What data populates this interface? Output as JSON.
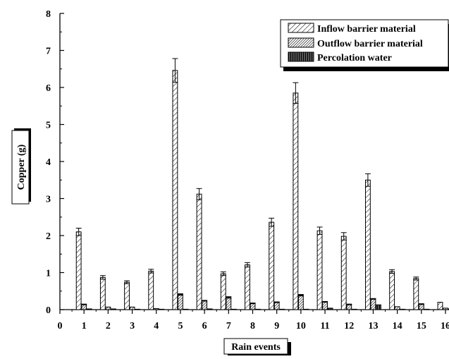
{
  "chart_data": {
    "type": "bar",
    "xlabel": "Rain events",
    "ylabel": "Copper (g)",
    "ylim": [
      0,
      8
    ],
    "xlim": [
      0,
      16
    ],
    "x_ticks": [
      "0",
      "1",
      "2",
      "3",
      "4",
      "5",
      "6",
      "7",
      "8",
      "9",
      "10",
      "11",
      "12",
      "13",
      "14",
      "15",
      "16"
    ],
    "y_ticks": [
      "0",
      "1",
      "2",
      "3",
      "4",
      "5",
      "6",
      "7",
      "8"
    ],
    "categories": [
      "1",
      "2",
      "3",
      "4",
      "5",
      "6",
      "7",
      "8",
      "9",
      "10",
      "11",
      "12",
      "13",
      "14",
      "15",
      "16"
    ],
    "legend_position": "top-right",
    "series": [
      {
        "name": "Inflow barrier material",
        "pattern": "sparse-diagonal-hatch",
        "values": [
          2.1,
          0.87,
          0.74,
          1.04,
          6.46,
          3.12,
          0.97,
          1.21,
          2.36,
          5.85,
          2.13,
          1.98,
          3.5,
          1.03,
          0.84,
          0.2
        ],
        "errors": [
          0.1,
          0.05,
          0.04,
          0.05,
          0.32,
          0.15,
          0.05,
          0.06,
          0.11,
          0.28,
          0.1,
          0.1,
          0.17,
          0.05,
          0.04,
          0.0
        ]
      },
      {
        "name": "Outflow barrier material",
        "pattern": "dense-diagonal-hatch",
        "values": [
          0.14,
          0.07,
          0.07,
          0.03,
          0.41,
          0.24,
          0.33,
          0.17,
          0.2,
          0.39,
          0.21,
          0.14,
          0.29,
          0.08,
          0.15,
          0.04
        ],
        "errors": [
          0.01,
          0.0,
          0.0,
          0.0,
          0.02,
          0.01,
          0.02,
          0.01,
          0.01,
          0.02,
          0.01,
          0.01,
          0.01,
          0.0,
          0.01,
          0.0
        ]
      },
      {
        "name": "Percolation water",
        "pattern": "vertical-lines",
        "values": [
          0.02,
          0.02,
          0.0,
          0.01,
          0.0,
          0.02,
          0.01,
          0.0,
          0.01,
          0.01,
          0.04,
          0.0,
          0.13,
          0.01,
          0.0,
          0.02
        ],
        "errors": [
          0,
          0,
          0,
          0,
          0,
          0,
          0,
          0,
          0,
          0,
          0,
          0,
          0,
          0,
          0,
          0
        ]
      }
    ]
  }
}
